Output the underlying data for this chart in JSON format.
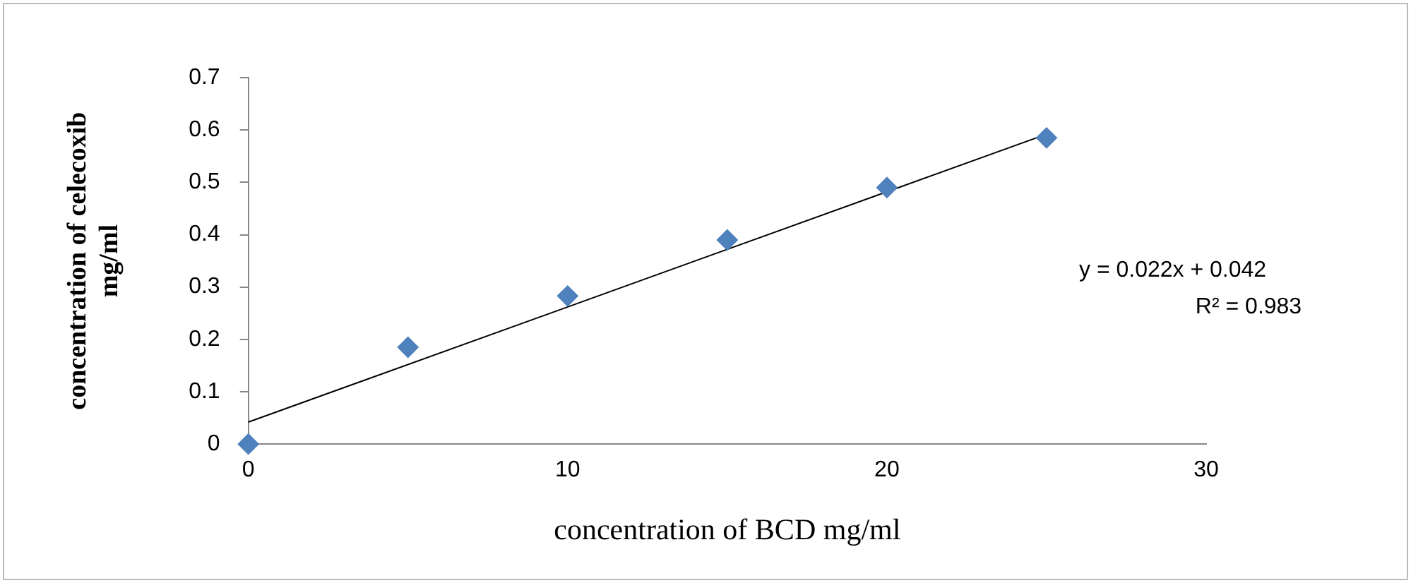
{
  "chart_data": {
    "type": "scatter",
    "xlabel": "concentration of BCD mg/ml",
    "ylabel": "concentration of celecoxib mg/ml",
    "xlim": [
      0,
      30
    ],
    "xticks": [
      0,
      10,
      20,
      30
    ],
    "ylim": [
      0,
      0.7
    ],
    "yticks": [
      0,
      0.1,
      0.2,
      0.3,
      0.4,
      0.5,
      0.6,
      0.7
    ],
    "grid": false,
    "legend": false,
    "marker": "diamond",
    "series": [
      {
        "color": "#4f81bd",
        "x": [
          0,
          5,
          10,
          15,
          20,
          25
        ],
        "values": [
          0,
          0.185,
          0.283,
          0.39,
          0.49,
          0.585
        ]
      },
      {
        "type": "line",
        "color": "#000000",
        "x": [
          0,
          25
        ],
        "values": [
          0.042,
          0.592
        ],
        "marker": "none"
      }
    ],
    "annotations": [
      "y = 0.022x + 0.042",
      "R² = 0.983"
    ]
  }
}
